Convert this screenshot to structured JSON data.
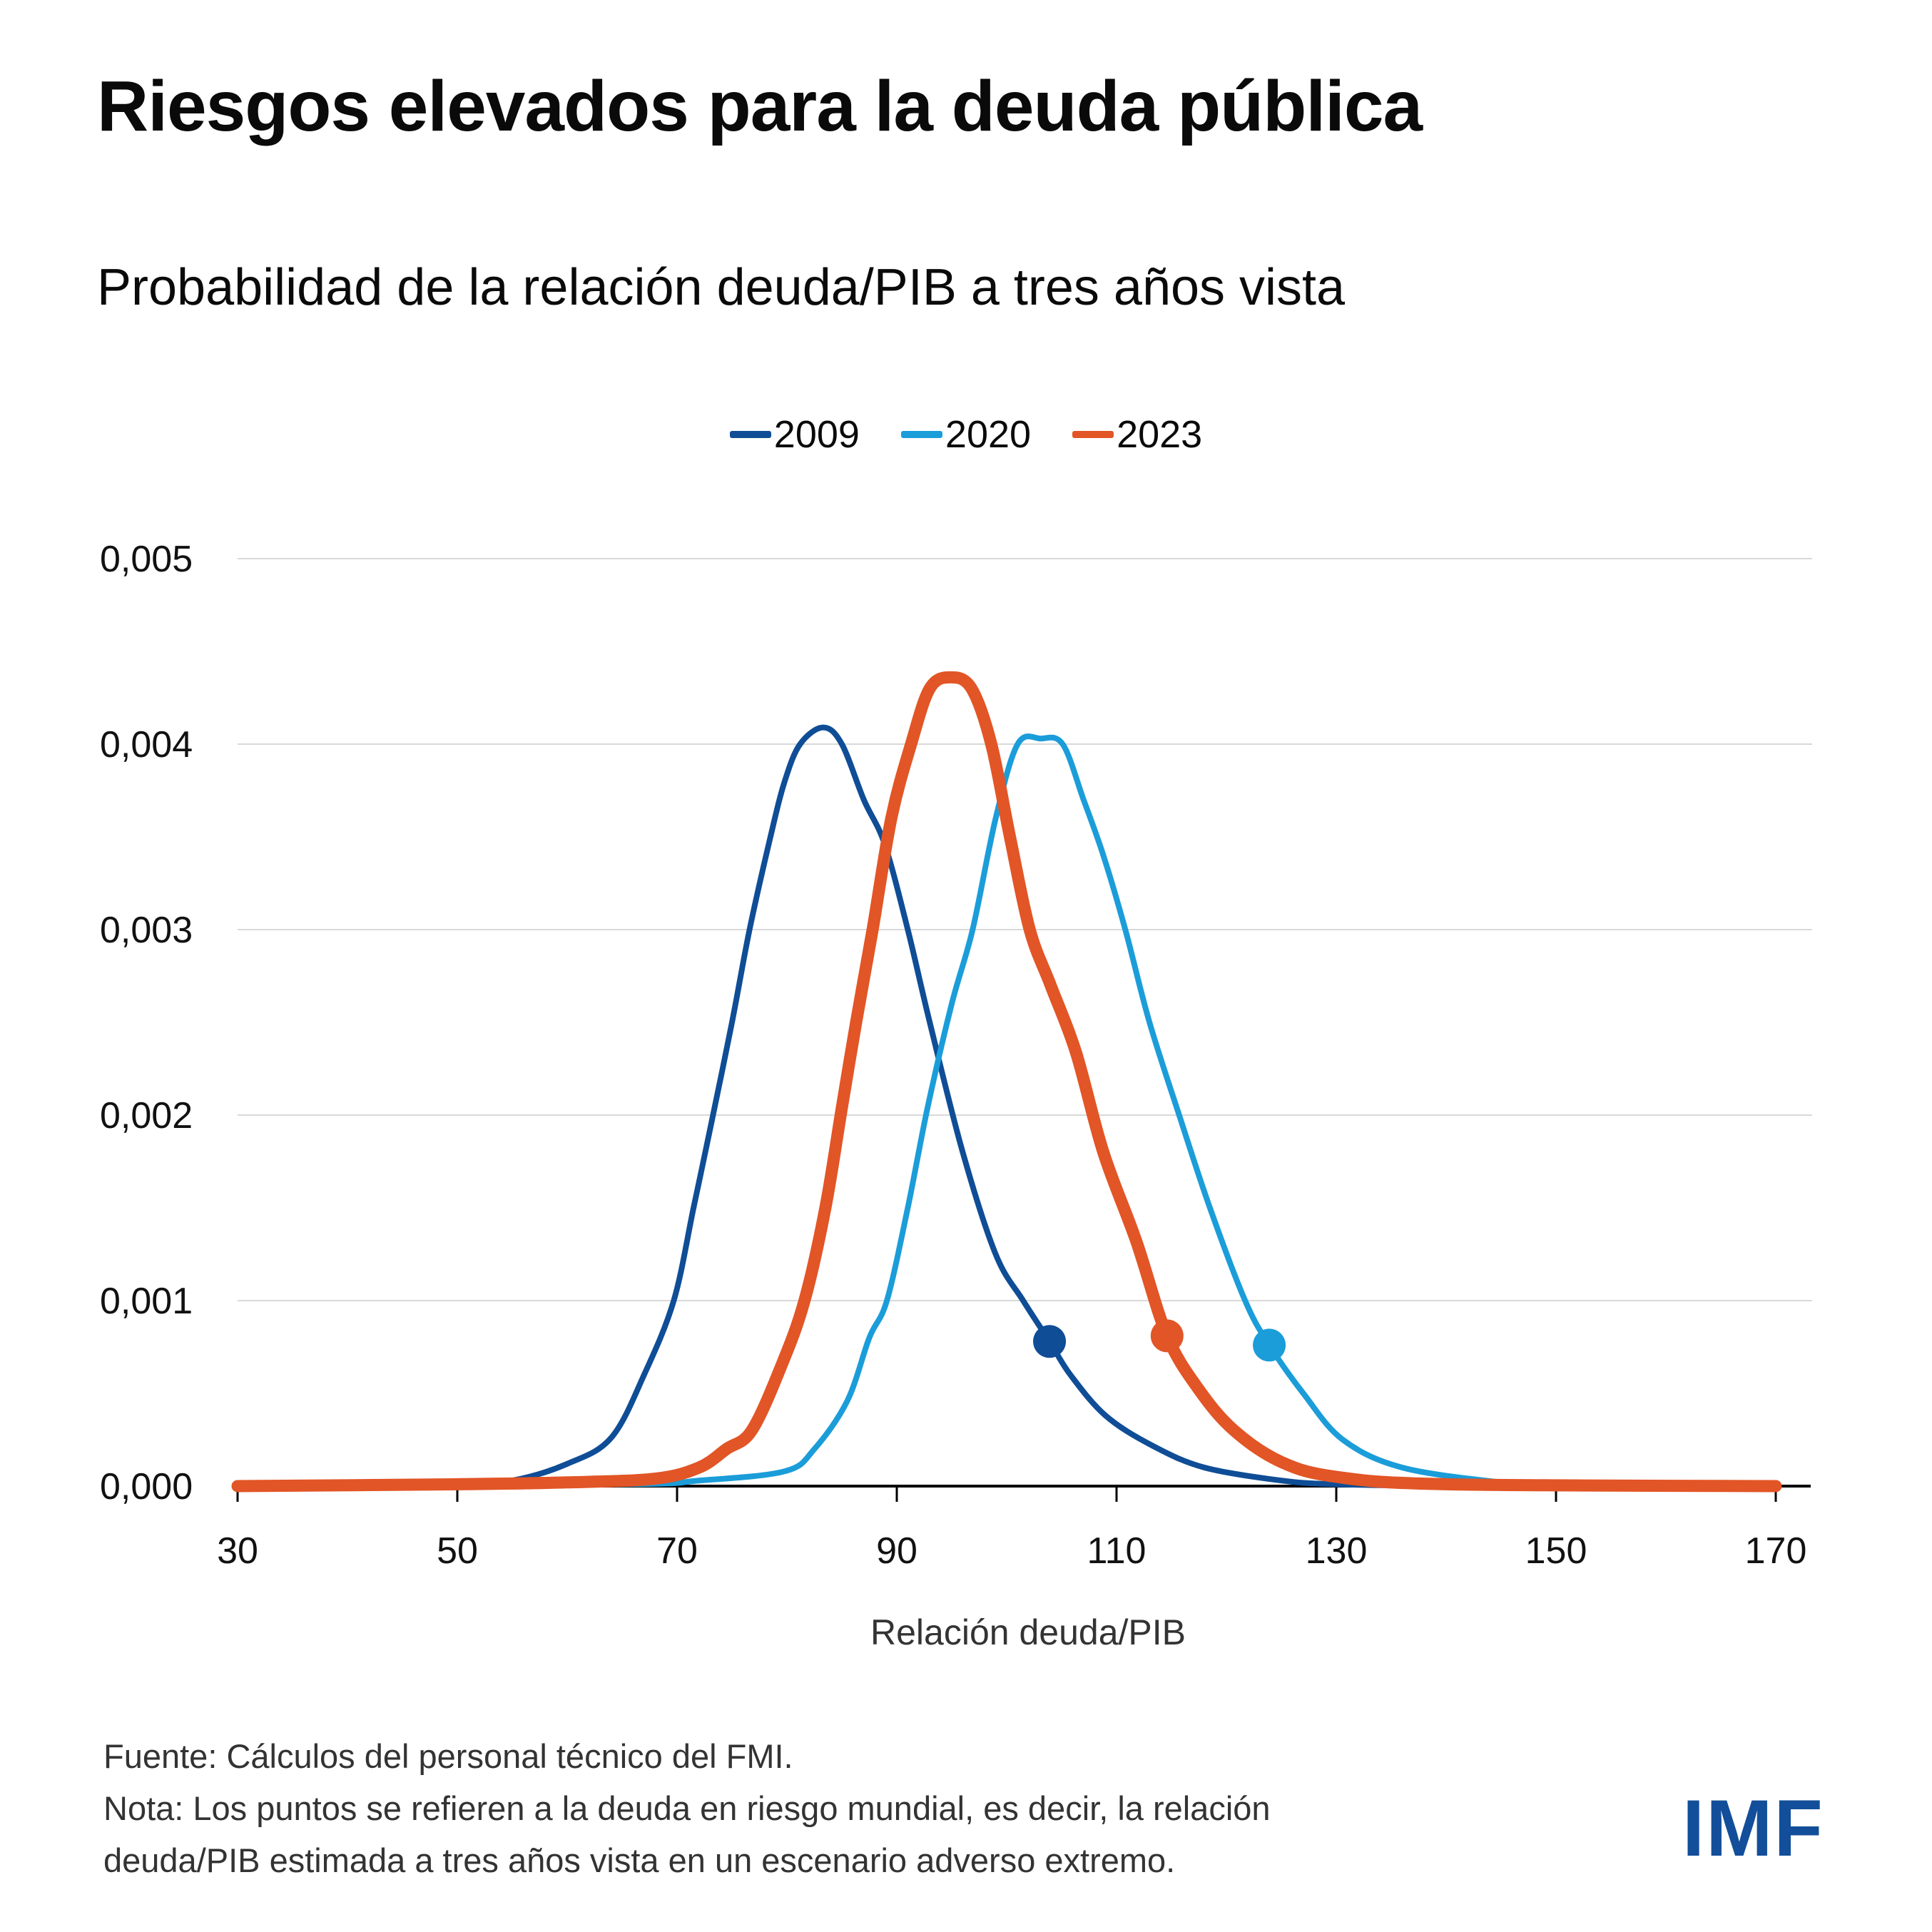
{
  "header": {
    "title": "Riesgos elevados para la deuda pública",
    "subtitle": "Probabilidad de la relación deuda/PIB a tres años vista"
  },
  "footer": {
    "source": "Fuente: Cálculos del personal técnico del FMI.",
    "note_line1": "Nota: Los puntos se refieren a la deuda en riesgo mundial, es decir, la relación",
    "note_line2": "deuda/PIB estimada a tres años vista en un escenario adverso extremo."
  },
  "logo": {
    "text": "IMF",
    "color": "#134E9A"
  },
  "colors": {
    "s2009": "#0F4D96",
    "s2020": "#1B9DD9",
    "s2023": "#E25526",
    "grid": "#D9D9D9",
    "axis": "#000000"
  },
  "chart_data": {
    "type": "line",
    "title": "Probabilidad de la relación deuda/PIB a tres años vista",
    "xlabel": "Relación deuda/PIB",
    "ylabel": "",
    "xlim": [
      30,
      170
    ],
    "ylim": [
      0,
      0.005
    ],
    "x_ticks": [
      30,
      50,
      70,
      90,
      110,
      130,
      150,
      170
    ],
    "x_tick_labels": [
      "30",
      "50",
      "70",
      "90",
      "110",
      "130",
      "150",
      "170"
    ],
    "y_ticks": [
      0,
      0.001,
      0.002,
      0.003,
      0.004,
      0.005
    ],
    "y_tick_labels": [
      "0,000",
      "0,001",
      "0,002",
      "0,003",
      "0,004",
      "0,005"
    ],
    "grid": true,
    "legend": {
      "placement": "top-center",
      "entries": [
        "2009",
        "2020",
        "2023"
      ]
    },
    "series": [
      {
        "name": "2009",
        "color_key": "s2009",
        "emphasis": false,
        "points": [
          [
            30,
            0
          ],
          [
            50,
            1e-05
          ],
          [
            55,
            3e-05
          ],
          [
            60,
            0.00012
          ],
          [
            64,
            0.00026
          ],
          [
            67,
            0.0006
          ],
          [
            69.7,
            0.001
          ],
          [
            71.5,
            0.0015
          ],
          [
            73.1,
            0.00195
          ],
          [
            75,
            0.0025
          ],
          [
            76.6,
            0.003
          ],
          [
            78.5,
            0.0035
          ],
          [
            79.8,
            0.0038
          ],
          [
            81.2,
            0.004
          ],
          [
            83.3,
            0.00409
          ],
          [
            85,
            0.004
          ],
          [
            87,
            0.0037
          ],
          [
            88.9,
            0.00346
          ],
          [
            91,
            0.003
          ],
          [
            93,
            0.0025
          ],
          [
            96,
            0.0018
          ],
          [
            99,
            0.00125
          ],
          [
            101.5,
            0.001
          ],
          [
            103.9,
            0.00078
          ],
          [
            105.8,
            0.0006
          ],
          [
            109,
            0.00038
          ],
          [
            113.2,
            0.00022
          ],
          [
            118,
            0.0001
          ],
          [
            125,
            3e-05
          ],
          [
            130,
            1e-05
          ],
          [
            140,
            0
          ]
        ],
        "marker": {
          "x": 103.9,
          "y": 0.00078,
          "label": "Deuda en riesgo 2009"
        }
      },
      {
        "name": "2020",
        "color_key": "s2020",
        "emphasis": false,
        "points": [
          [
            30,
            0
          ],
          [
            65,
            1e-05
          ],
          [
            72,
            3e-05
          ],
          [
            79.8,
            8e-05
          ],
          [
            82.5,
            0.0002
          ],
          [
            85.5,
            0.00046
          ],
          [
            87.5,
            0.0008
          ],
          [
            89.1,
            0.001
          ],
          [
            91,
            0.0015
          ],
          [
            92.8,
            0.00204
          ],
          [
            95,
            0.0026
          ],
          [
            96.9,
            0.003
          ],
          [
            99,
            0.0036
          ],
          [
            101,
            0.004
          ],
          [
            103.1,
            0.00403
          ],
          [
            105.1,
            0.004
          ],
          [
            107,
            0.0037
          ],
          [
            108.8,
            0.0034
          ],
          [
            110.8,
            0.003
          ],
          [
            113,
            0.0025
          ],
          [
            115.7,
            0.002
          ],
          [
            118.5,
            0.0015
          ],
          [
            121.7,
            0.001
          ],
          [
            123.9,
            0.00076
          ],
          [
            127,
            0.0005
          ],
          [
            130.6,
            0.00025
          ],
          [
            136,
            0.0001
          ],
          [
            145,
            2e-05
          ],
          [
            150,
            5e-06
          ],
          [
            170,
            0
          ]
        ],
        "marker": {
          "x": 123.9,
          "y": 0.00076,
          "label": "Deuda en riesgo 2020"
        }
      },
      {
        "name": "2023",
        "color_key": "s2023",
        "emphasis": true,
        "points": [
          [
            30,
            0
          ],
          [
            50,
            1e-05
          ],
          [
            60,
            2e-05
          ],
          [
            68,
            4e-05
          ],
          [
            72,
            0.0001
          ],
          [
            74.5,
            0.0002
          ],
          [
            76.8,
            0.0003
          ],
          [
            79.5,
            0.00065
          ],
          [
            81.6,
            0.001
          ],
          [
            83.5,
            0.0015
          ],
          [
            85,
            0.00204
          ],
          [
            86.3,
            0.0025
          ],
          [
            87.8,
            0.003
          ],
          [
            89.5,
            0.0036
          ],
          [
            91.3,
            0.004
          ],
          [
            93,
            0.0043
          ],
          [
            94.9,
            0.00436
          ],
          [
            96.8,
            0.0043
          ],
          [
            98.6,
            0.004
          ],
          [
            100.3,
            0.0035
          ],
          [
            102.1,
            0.003
          ],
          [
            104,
            0.0027
          ],
          [
            106.3,
            0.00234
          ],
          [
            108.8,
            0.0018
          ],
          [
            111.8,
            0.00132
          ],
          [
            114.6,
            0.00081
          ],
          [
            117.5,
            0.00052
          ],
          [
            120.7,
            0.0003
          ],
          [
            125,
            0.00013
          ],
          [
            130,
            5e-05
          ],
          [
            140,
            1e-05
          ],
          [
            170,
            0
          ]
        ],
        "marker": {
          "x": 114.6,
          "y": 0.00081,
          "label": "Deuda en riesgo 2023"
        }
      }
    ]
  }
}
